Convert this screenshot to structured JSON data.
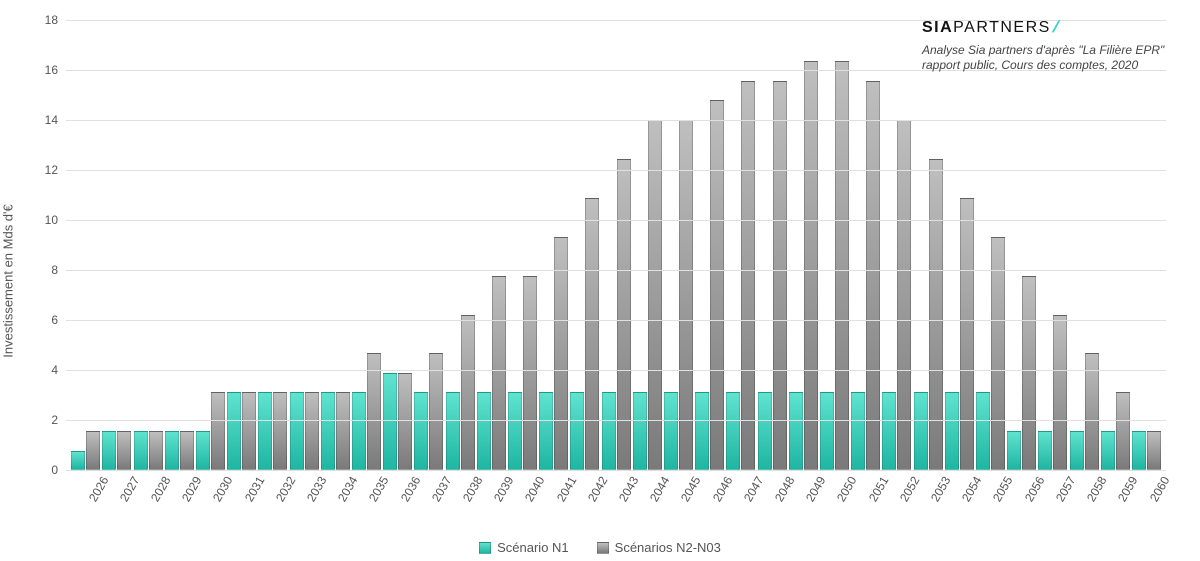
{
  "chart": {
    "type": "bar",
    "y_axis": {
      "title": "Investissement en Mds d'€",
      "min": 0,
      "max": 18,
      "tick_step": 2,
      "ticks": [
        0,
        2,
        4,
        6,
        8,
        10,
        12,
        14,
        16,
        18
      ]
    },
    "x_axis": {
      "label_rotation_deg": -60,
      "categories": [
        "2026",
        "2027",
        "2028",
        "2029",
        "2030",
        "2031",
        "2032",
        "2033",
        "2034",
        "2035",
        "2036",
        "2037",
        "2038",
        "2039",
        "2040",
        "2041",
        "2042",
        "2043",
        "2044",
        "2045",
        "2046",
        "2047",
        "2048",
        "2049",
        "2050",
        "2051",
        "2052",
        "2053",
        "2054",
        "2055",
        "2056",
        "2057",
        "2058",
        "2059",
        "2060"
      ]
    },
    "series": [
      {
        "id": "n1",
        "label": "Scénario N1",
        "color_top": "#5fe3cf",
        "color_bottom": "#1fb6a2",
        "values": [
          0.78,
          1.56,
          1.56,
          1.56,
          1.56,
          3.11,
          3.11,
          3.11,
          3.11,
          3.11,
          3.89,
          3.11,
          3.11,
          3.11,
          3.11,
          3.11,
          3.11,
          3.11,
          3.11,
          3.11,
          3.11,
          3.11,
          3.11,
          3.11,
          3.11,
          3.11,
          3.11,
          3.11,
          3.11,
          3.11,
          1.56,
          1.56,
          1.56,
          1.56,
          1.56
        ]
      },
      {
        "id": "n2n03",
        "label": "Scénarios N2-N03",
        "color_top": "#bfbfbf",
        "color_bottom": "#7a7a7a",
        "values": [
          1.56,
          1.56,
          1.56,
          1.56,
          3.11,
          3.11,
          3.11,
          3.11,
          3.11,
          4.67,
          3.89,
          4.67,
          6.22,
          7.78,
          7.78,
          9.34,
          10.9,
          12.45,
          14.01,
          14.01,
          14.79,
          15.57,
          15.57,
          16.35,
          16.35,
          15.57,
          14.01,
          12.45,
          10.9,
          9.34,
          7.78,
          6.22,
          4.67,
          3.11,
          1.56
        ]
      }
    ],
    "background_color": "#ffffff",
    "grid_color": "#e0e0e0",
    "axis_text_color": "#555555",
    "title_fontsize": 13,
    "label_fontsize": 12
  },
  "note": {
    "brand_sia": "SIA",
    "brand_partners": "PARTNERS",
    "brand_slash": "/",
    "brand_slash_color": "#2ad4c1",
    "lines": [
      "Analyse Sia partners d'après \"La Filière EPR\" rapport public,  Cours des comptes, 2020"
    ]
  }
}
